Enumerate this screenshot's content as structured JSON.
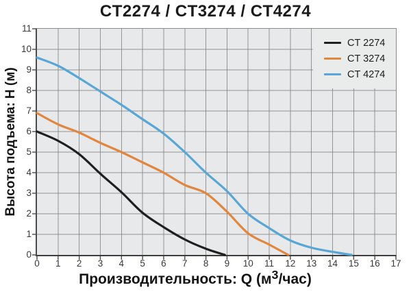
{
  "title": "CT2274 / CT3274 / CT4274",
  "colors": {
    "page_bg": "#ffffff",
    "plot_bg": "#e8e9ea",
    "legend_bg": "#eaebeb",
    "grid": "#7f7f7f",
    "tick": "#4a4a4a",
    "title_text": "#1b1b1b",
    "tick_text": "#383838",
    "series_black": "#1f1f1f",
    "series_orange": "#e2863e",
    "series_blue": "#58a6d6"
  },
  "chart_data": {
    "type": "line",
    "title": "CT2274 / CT3274 / CT4274",
    "xlabel": "Производительность: Q (м³/час)",
    "xlabel_parts": {
      "prefix": "Производительность: Q (м",
      "sup": "3",
      "suffix": "/час)"
    },
    "ylabel": "Высота подъема: H (м)",
    "xlim": [
      0,
      17
    ],
    "ylim": [
      0,
      11
    ],
    "x_ticks": [
      0,
      1,
      2,
      3,
      4,
      5,
      6,
      7,
      8,
      9,
      10,
      11,
      12,
      13,
      14,
      15,
      16,
      17
    ],
    "y_ticks": [
      0,
      1,
      2,
      3,
      4,
      5,
      6,
      7,
      8,
      9,
      10,
      11
    ],
    "grid": true,
    "legend_position": "top-right",
    "series": [
      {
        "name": "CT 2274",
        "color": "#1f1f1f",
        "points": [
          [
            0,
            6.0
          ],
          [
            1,
            5.55
          ],
          [
            2,
            4.9
          ],
          [
            3,
            3.95
          ],
          [
            4,
            3.05
          ],
          [
            5,
            2.05
          ],
          [
            6,
            1.35
          ],
          [
            7,
            0.75
          ],
          [
            8,
            0.3
          ],
          [
            8.9,
            0
          ]
        ]
      },
      {
        "name": "CT 3274",
        "color": "#e2863e",
        "points": [
          [
            0,
            6.9
          ],
          [
            1,
            6.35
          ],
          [
            2,
            5.95
          ],
          [
            3,
            5.45
          ],
          [
            4,
            5.0
          ],
          [
            5,
            4.5
          ],
          [
            6,
            4.0
          ],
          [
            7,
            3.4
          ],
          [
            8,
            3.0
          ],
          [
            9,
            2.1
          ],
          [
            10,
            1.05
          ],
          [
            11,
            0.5
          ],
          [
            11.9,
            0
          ]
        ]
      },
      {
        "name": "CT 4274",
        "color": "#58a6d6",
        "points": [
          [
            0,
            9.6
          ],
          [
            1,
            9.2
          ],
          [
            2,
            8.6
          ],
          [
            3,
            7.95
          ],
          [
            4,
            7.3
          ],
          [
            5,
            6.6
          ],
          [
            6,
            5.9
          ],
          [
            7,
            5.0
          ],
          [
            8,
            4.0
          ],
          [
            9,
            3.1
          ],
          [
            10,
            2.0
          ],
          [
            11,
            1.3
          ],
          [
            12,
            0.7
          ],
          [
            13,
            0.35
          ],
          [
            14,
            0.15
          ],
          [
            14.9,
            0
          ]
        ]
      }
    ]
  }
}
